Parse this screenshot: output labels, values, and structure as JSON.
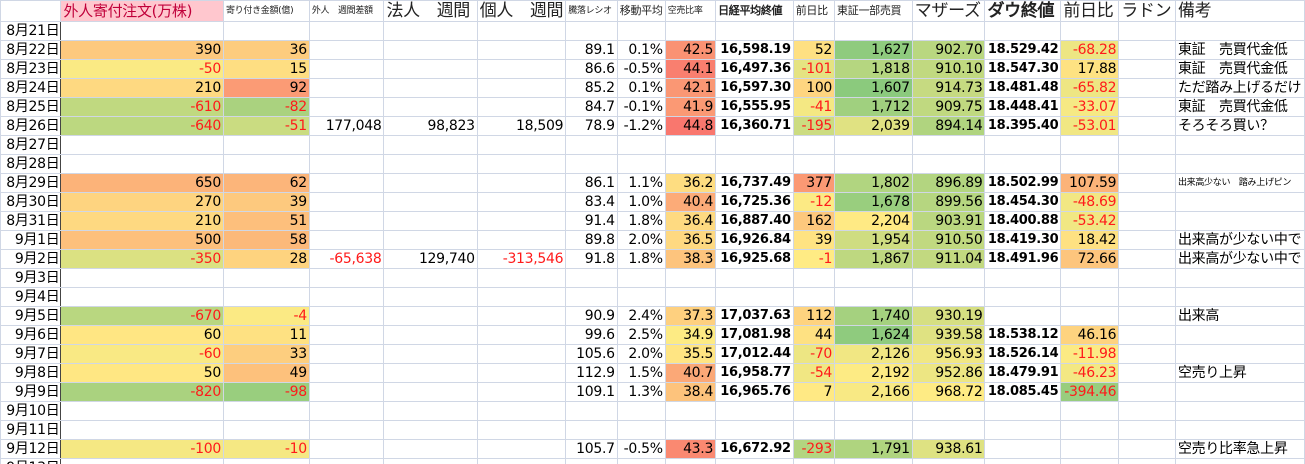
{
  "headers": [
    "",
    "外人寄付注文(万株)",
    "寄り付き金額(億)",
    "外人　週間差額",
    "法人　週間",
    "",
    "個人　週間",
    "騰落レシオ",
    "移動平均",
    "空売比率",
    "日経平均終値",
    "前日比",
    "東証一部売買",
    "マザーズ",
    "ダウ終値",
    "前日比",
    "ラドン",
    "備考"
  ],
  "colors": {
    "header_pink_bg": "#FFC7CE",
    "header_pink_text": "#C0003A",
    "negative_text": "#FF1A1A",
    "scale_low": "#63BE7B",
    "scale_mid": "#FFEB84",
    "scale_high": "#F8696B",
    "gridline": "#D0D7E5"
  },
  "rows": [
    {
      "date": "8月21日",
      "cells": [
        "",
        "",
        "",
        "",
        "",
        "",
        "",
        "",
        "",
        "",
        "",
        "",
        "",
        "",
        "",
        ""
      ]
    },
    {
      "date": "8月22日",
      "cells": [
        "390",
        "36",
        "",
        "",
        "",
        "89.1",
        "0.1%",
        "42.5",
        "16,598.19",
        "52",
        "1,627",
        "902.70",
        "18.529.42",
        "-68.28",
        "",
        "東証　売買代金低"
      ]
    },
    {
      "date": "8月23日",
      "cells": [
        "-50",
        "15",
        "",
        "",
        "",
        "86.6",
        "-0.5%",
        "44.1",
        "16,497.36",
        "-101",
        "1,818",
        "910.10",
        "18.547.30",
        "17.88",
        "",
        "東証　売買代金低"
      ]
    },
    {
      "date": "8月24日",
      "cells": [
        "210",
        "92",
        "",
        "",
        "",
        "85.2",
        "0.1%",
        "42.1",
        "16,597.30",
        "100",
        "1,607",
        "914.73",
        "18.481.48",
        "-65.82",
        "",
        "ただ踏み上げるだけ"
      ]
    },
    {
      "date": "8月25日",
      "cells": [
        "-610",
        "-82",
        "",
        "",
        "",
        "84.7",
        "-0.1%",
        "41.9",
        "16,555.95",
        "-41",
        "1,712",
        "909.75",
        "18.448.41",
        "-33.07",
        "",
        "東証　売買代金低"
      ]
    },
    {
      "date": "8月26日",
      "cells": [
        "-640",
        "-51",
        "177,048",
        "98,823",
        "18,509",
        "78.9",
        "-1.2%",
        "44.8",
        "16,360.71",
        "-195",
        "2,039",
        "894.14",
        "18.395.40",
        "-53.01",
        "",
        "そろそろ買い？"
      ]
    },
    {
      "date": "8月27日",
      "cells": [
        "",
        "",
        "",
        "",
        "",
        "",
        "",
        "",
        "",
        "",
        "",
        "",
        "",
        "",
        "",
        ""
      ]
    },
    {
      "date": "8月28日",
      "cells": [
        "",
        "",
        "",
        "",
        "",
        "",
        "",
        "",
        "",
        "",
        "",
        "",
        "",
        "",
        "",
        ""
      ]
    },
    {
      "date": "8月29日",
      "cells": [
        "650",
        "62",
        "",
        "",
        "",
        "86.1",
        "1.1%",
        "36.2",
        "16,737.49",
        "377",
        "1,802",
        "896.89",
        "18.502.99",
        "107.59",
        "",
        "出来高少ない　踏み上げピン"
      ]
    },
    {
      "date": "8月30日",
      "cells": [
        "270",
        "39",
        "",
        "",
        "",
        "83.4",
        "1.0%",
        "40.4",
        "16,725.36",
        "-12",
        "1,678",
        "899.56",
        "18.454.30",
        "-48.69",
        "",
        ""
      ]
    },
    {
      "date": "8月31日",
      "cells": [
        "210",
        "51",
        "",
        "",
        "",
        "91.4",
        "1.8%",
        "36.4",
        "16,887.40",
        "162",
        "2,204",
        "903.91",
        "18.400.88",
        "-53.42",
        "",
        ""
      ]
    },
    {
      "date": "9月1日",
      "cells": [
        "500",
        "58",
        "",
        "",
        "",
        "89.8",
        "2.0%",
        "36.5",
        "16,926.84",
        "39",
        "1,954",
        "910.50",
        "18.419.30",
        "18.42",
        "",
        "出来高が少ない中で"
      ]
    },
    {
      "date": "9月2日",
      "cells": [
        "-350",
        "28",
        "-65,638",
        "129,740",
        "-313,546",
        "91.8",
        "1.8%",
        "38.3",
        "16,925.68",
        "-1",
        "1,867",
        "911.04",
        "18.491.96",
        "72.66",
        "",
        "出来高が少ない中で"
      ]
    },
    {
      "date": "9月3日",
      "cells": [
        "",
        "",
        "",
        "",
        "",
        "",
        "",
        "",
        "",
        "",
        "",
        "",
        "",
        "",
        "",
        ""
      ]
    },
    {
      "date": "9月4日",
      "cells": [
        "",
        "",
        "",
        "",
        "",
        "",
        "",
        "",
        "",
        "",
        "",
        "",
        "",
        "",
        "",
        ""
      ]
    },
    {
      "date": "9月5日",
      "cells": [
        "-670",
        "-4",
        "",
        "",
        "",
        "90.9",
        "2.4%",
        "37.3",
        "17,037.63",
        "112",
        "1,740",
        "930.19",
        "",
        "",
        "",
        "出来高"
      ]
    },
    {
      "date": "9月6日",
      "cells": [
        "60",
        "11",
        "",
        "",
        "",
        "99.6",
        "2.5%",
        "34.9",
        "17,081.98",
        "44",
        "1,624",
        "939.58",
        "18.538.12",
        "46.16",
        "",
        ""
      ]
    },
    {
      "date": "9月7日",
      "cells": [
        "-60",
        "33",
        "",
        "",
        "",
        "105.6",
        "2.0%",
        "35.5",
        "17,012.44",
        "-70",
        "2,126",
        "956.93",
        "18.526.14",
        "-11.98",
        "",
        ""
      ]
    },
    {
      "date": "9月8日",
      "cells": [
        "50",
        "49",
        "",
        "",
        "",
        "112.9",
        "1.5%",
        "40.7",
        "16,958.77",
        "-54",
        "2,192",
        "952.86",
        "18.479.91",
        "-46.23",
        "",
        "空売り上昇"
      ]
    },
    {
      "date": "9月9日",
      "cells": [
        "-820",
        "-98",
        "",
        "",
        "",
        "109.1",
        "1.3%",
        "38.4",
        "16,965.76",
        "7",
        "2,166",
        "968.72",
        "18.085.45",
        "-394.46",
        "",
        ""
      ]
    },
    {
      "date": "9月10日",
      "cells": [
        "",
        "",
        "",
        "",
        "",
        "",
        "",
        "",
        "",
        "",
        "",
        "",
        "",
        "",
        "",
        ""
      ]
    },
    {
      "date": "9月11日",
      "cells": [
        "",
        "",
        "",
        "",
        "",
        "",
        "",
        "",
        "",
        "",
        "",
        "",
        "",
        "",
        "",
        ""
      ]
    },
    {
      "date": "9月12日",
      "cells": [
        "-100",
        "-10",
        "",
        "",
        "",
        "105.7",
        "-0.5%",
        "43.3",
        "16,672.92",
        "-293",
        "1,791",
        "938.61",
        "",
        "",
        "",
        "空売り比率急上昇"
      ]
    },
    {
      "date": "9月13日",
      "cells": [
        "",
        "",
        "",
        "",
        "",
        "",
        "",
        "",
        "",
        "",
        "",
        "",
        "",
        "",
        "",
        ""
      ]
    }
  ]
}
